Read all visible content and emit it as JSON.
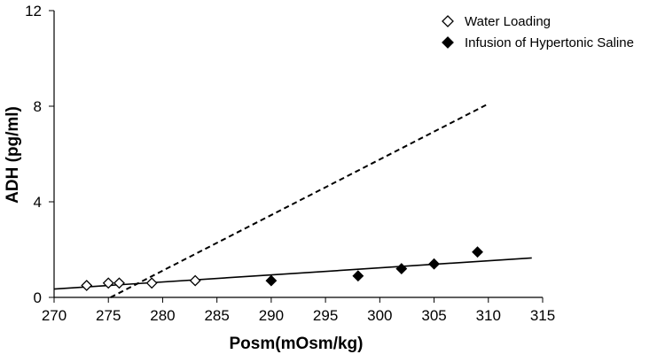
{
  "chart_data": {
    "type": "scatter",
    "title": "",
    "xlabel": "Posm(mOsm/kg)",
    "ylabel": "ADH (pg/ml)",
    "xlim": [
      270,
      315
    ],
    "ylim": [
      0,
      12
    ],
    "x_ticks": [
      270,
      275,
      280,
      285,
      290,
      295,
      300,
      305,
      310,
      315
    ],
    "y_ticks": [
      0,
      4,
      8,
      12
    ],
    "grid": false,
    "legend_position": "top-right",
    "series": [
      {
        "name": "Water Loading",
        "marker": "open-diamond",
        "color": "#000000",
        "points": [
          {
            "x": 273,
            "y": 0.5
          },
          {
            "x": 275,
            "y": 0.6
          },
          {
            "x": 276,
            "y": 0.6
          },
          {
            "x": 279,
            "y": 0.6
          },
          {
            "x": 283,
            "y": 0.7
          }
        ]
      },
      {
        "name": "Infusion of Hypertonic Saline",
        "marker": "filled-diamond",
        "color": "#000000",
        "points": [
          {
            "x": 290,
            "y": 0.7
          },
          {
            "x": 298,
            "y": 0.9
          },
          {
            "x": 302,
            "y": 1.2
          },
          {
            "x": 305,
            "y": 1.4
          },
          {
            "x": 309,
            "y": 1.9
          }
        ]
      }
    ],
    "lines": [
      {
        "style": "solid",
        "x": [
          270,
          314
        ],
        "y": [
          0.35,
          1.65
        ]
      },
      {
        "style": "dashed",
        "x": [
          275.2,
          310
        ],
        "y": [
          0,
          8.1
        ]
      }
    ]
  }
}
